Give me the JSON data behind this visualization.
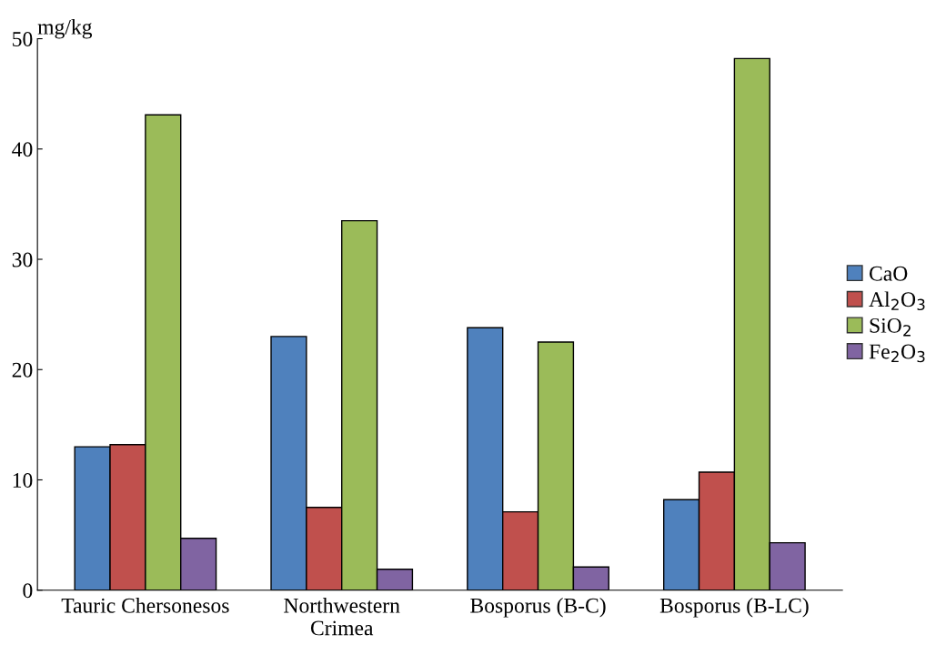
{
  "chart_data": {
    "type": "bar",
    "ylabel": "mg/kg",
    "categories": [
      "Tauric Chersonesos",
      "Northwestern\nCrimea",
      "Bosporus (B-C)",
      "Bosporus (B-LC)"
    ],
    "series": [
      {
        "name": "CaO",
        "color": "#4f81bd",
        "values": [
          13.0,
          23.0,
          23.8,
          8.2
        ]
      },
      {
        "name": "Al$_{2}$O$_{3}$",
        "color": "#c0504d",
        "values": [
          13.2,
          7.5,
          7.1,
          10.7
        ]
      },
      {
        "name": "SiO$_{2}$",
        "color": "#9bbb59",
        "values": [
          43.1,
          33.5,
          22.5,
          48.2
        ]
      },
      {
        "name": "Fe$_{2}$O$_{3}$",
        "color": "#8064a2",
        "values": [
          4.7,
          1.9,
          2.1,
          4.3
        ]
      }
    ],
    "ylim": [
      0,
      50
    ],
    "yticks": [
      0,
      10,
      20,
      30,
      40,
      50
    ],
    "grid": false,
    "legend": "right"
  }
}
